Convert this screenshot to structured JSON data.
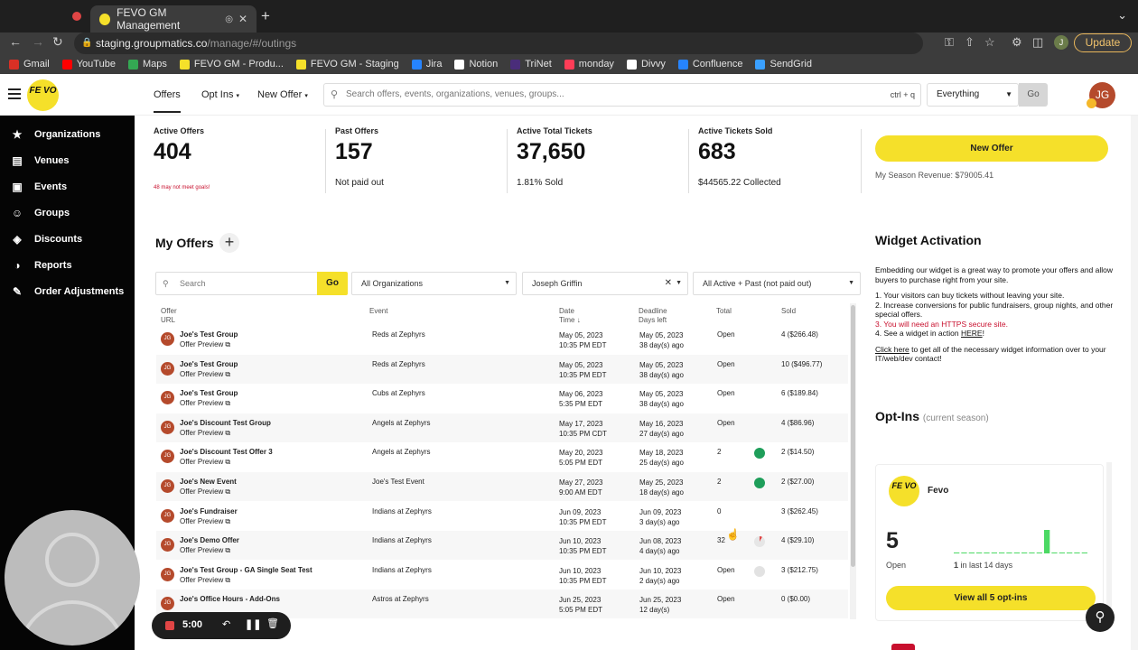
{
  "browser": {
    "tab_title": "FEVO GM Management",
    "url_host": "staging.groupmatics.co",
    "url_path": "/manage/#/outings",
    "update_label": "Update",
    "profile_initial": "J",
    "bookmarks": [
      "Gmail",
      "YouTube",
      "Maps",
      "FEVO GM - Produ...",
      "FEVO GM - Staging",
      "Jira",
      "Notion",
      "TriNet",
      "monday",
      "Divvy",
      "Confluence",
      "SendGrid"
    ]
  },
  "header": {
    "logo_text": "FE VO",
    "nav": {
      "offers": "Offers",
      "optins": "Opt Ins",
      "new_offer": "New Offer"
    },
    "search_placeholder": "Search offers, events, organizations, venues, groups...",
    "search_shortcut": "ctrl + q",
    "scope_value": "Everything",
    "go_label": "Go",
    "avatar_initials": "JG"
  },
  "sidebar": {
    "items": [
      {
        "label": "Organizations",
        "icon": "star-icon"
      },
      {
        "label": "Venues",
        "icon": "stadium-icon"
      },
      {
        "label": "Events",
        "icon": "ticket-icon"
      },
      {
        "label": "Groups",
        "icon": "people-icon"
      },
      {
        "label": "Discounts",
        "icon": "tag-icon"
      },
      {
        "label": "Reports",
        "icon": "pie-chart-icon"
      },
      {
        "label": "Order Adjustments",
        "icon": "edit-icon"
      }
    ]
  },
  "stats": {
    "active_offers": {
      "label": "Active Offers",
      "value": "404",
      "sub": "48 may not meet goals!"
    },
    "past_offers": {
      "label": "Past Offers",
      "value": "157",
      "sub": "Not paid out"
    },
    "active_total_tickets": {
      "label": "Active Total Tickets",
      "value": "37,650",
      "sub": "1.81% Sold"
    },
    "active_tickets_sold": {
      "label": "Active Tickets Sold",
      "value": "683",
      "sub": "$44565.22 Collected"
    },
    "new_offer_button": "New Offer",
    "season_revenue": "My Season Revenue: $79005.41"
  },
  "offers": {
    "title": "My Offers",
    "filters": {
      "search_placeholder": "Search",
      "go_label": "Go",
      "organization": "All Organizations",
      "user": "Joseph Griffin",
      "status": "All Active + Past (not paid out)"
    },
    "columns": {
      "offer": "Offer",
      "url": "URL",
      "event": "Event",
      "date": "Date",
      "time": "Time",
      "deadline": "Deadline",
      "days_left": "Days left",
      "total": "Total",
      "sold": "Sold"
    },
    "rows": [
      {
        "initials": "JG",
        "name": "Joe's Test Group",
        "preview": "Offer Preview",
        "event": "Reds at Zephyrs",
        "date": "May 05, 2023",
        "time": "10:35 PM EDT",
        "deadline": "May 05, 2023",
        "days": "38 day(s) ago",
        "total": "Open",
        "status": "none",
        "sold": "4 ($266.48)"
      },
      {
        "initials": "JG",
        "name": "Joe's Test Group",
        "preview": "Offer Preview",
        "event": "Reds at Zephyrs",
        "date": "May 05, 2023",
        "time": "10:35 PM EDT",
        "deadline": "May 05, 2023",
        "days": "38 day(s) ago",
        "total": "Open",
        "status": "none",
        "sold": "10 ($496.77)"
      },
      {
        "initials": "JG",
        "name": "Joe's Test Group",
        "preview": "Offer Preview",
        "event": "Cubs at Zephyrs",
        "date": "May 06, 2023",
        "time": "5:35 PM EDT",
        "deadline": "May 05, 2023",
        "days": "38 day(s) ago",
        "total": "Open",
        "status": "none",
        "sold": "6 ($189.84)"
      },
      {
        "initials": "JG",
        "name": "Joe's Discount Test Group",
        "preview": "Offer Preview",
        "event": "Angels at Zephyrs",
        "date": "May 17, 2023",
        "time": "10:35 PM CDT",
        "deadline": "May 16, 2023",
        "days": "27 day(s) ago",
        "total": "Open",
        "status": "none",
        "sold": "4 ($86.96)"
      },
      {
        "initials": "JG",
        "name": "Joe's Discount Test Offer 3",
        "preview": "Offer Preview",
        "event": "Angels at Zephyrs",
        "date": "May 20, 2023",
        "time": "5:05 PM EDT",
        "deadline": "May 18, 2023",
        "days": "25 day(s) ago",
        "total": "2",
        "status": "green",
        "sold": "2 ($14.50)"
      },
      {
        "initials": "JG",
        "name": "Joe's New Event",
        "preview": "Offer Preview",
        "event": "Joe's Test Event",
        "date": "May 27, 2023",
        "time": "9:00 AM EDT",
        "deadline": "May 25, 2023",
        "days": "18 day(s) ago",
        "total": "2",
        "status": "green",
        "sold": "2 ($27.00)"
      },
      {
        "initials": "JG",
        "name": "Joe's Fundraiser",
        "preview": "Offer Preview",
        "event": "Indians at Zephyrs",
        "date": "Jun 09, 2023",
        "time": "10:35 PM EDT",
        "deadline": "Jun 09, 2023",
        "days": "3 day(s) ago",
        "total": "0",
        "status": "none",
        "sold": "3 ($262.45)"
      },
      {
        "initials": "JG",
        "name": "Joe's Demo Offer",
        "preview": "Offer Preview",
        "event": "Indians at Zephyrs",
        "date": "Jun 10, 2023",
        "time": "10:35 PM EDT",
        "deadline": "Jun 08, 2023",
        "days": "4 day(s) ago",
        "total": "32",
        "status": "partial",
        "sold": "4 ($29.10)"
      },
      {
        "initials": "JG",
        "name": "Joe's Test Group - GA Single Seat Test",
        "preview": "Offer Preview",
        "event": "Indians at Zephyrs",
        "date": "Jun 10, 2023",
        "time": "10:35 PM EDT",
        "deadline": "Jun 10, 2023",
        "days": "2 day(s) ago",
        "total": "Open",
        "status": "grey",
        "sold": "3 ($212.75)"
      },
      {
        "initials": "JG",
        "name": "Joe's Office Hours - Add-Ons",
        "preview": "",
        "event": "Astros at Zephyrs",
        "date": "Jun 25, 2023",
        "time": "5:05 PM EDT",
        "deadline": "Jun 25, 2023",
        "days": "12 day(s)",
        "total": "Open",
        "status": "none",
        "sold": "0 ($0.00)"
      }
    ]
  },
  "widget": {
    "title": "Widget Activation",
    "intro": "Embedding our widget is a great way to promote your offers and allow buyers to purchase right from your site.",
    "point1": "1. Your visitors can buy tickets without leaving your site.",
    "point2": "2. Increase conversions for public fundraisers, group nights, and other special offers.",
    "point3": "3. You will need an HTTPS secure site.",
    "point4_prefix": "4. See a widget in action ",
    "point4_link": "HERE",
    "point4_suffix": "!",
    "click_link": "Click here",
    "click_rest": " to get all of the necessary widget information over to your IT/web/dev contact!"
  },
  "optins": {
    "title": "Opt-Ins",
    "season": "(current season)",
    "org_name": "Fevo",
    "count": "5",
    "count_label": "Open",
    "recent_count": "1",
    "recent_label": "in last 14 days",
    "view_all": "View all 5 opt-ins",
    "spark_values": [
      0,
      0,
      0,
      0,
      0,
      0,
      0,
      0,
      0,
      0,
      0,
      0,
      1,
      0,
      0,
      0,
      0,
      0
    ]
  },
  "recorder": {
    "time": "5:00"
  },
  "colors": {
    "brand_yellow": "#f5e02a",
    "avatar": "#b54a2c",
    "green": "#1e9e5a",
    "alert_red": "#c8102e"
  }
}
